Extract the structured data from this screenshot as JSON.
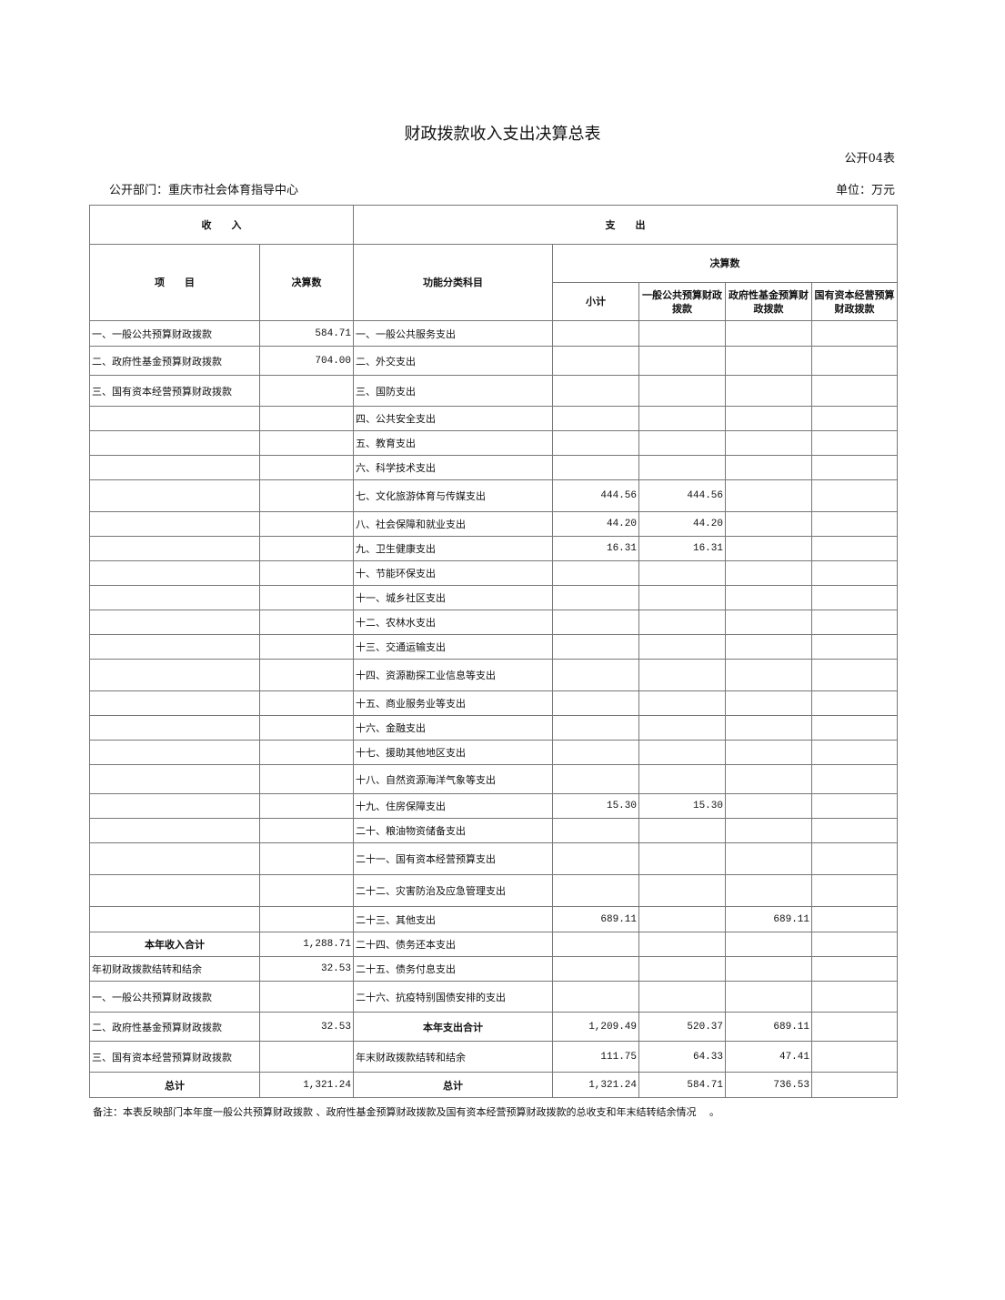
{
  "title": "财政拨款收入支出决算总表",
  "form_no": "公开04表",
  "department": "公开部门：重庆市社会体育指导中心",
  "unit": "单位：万元",
  "headers": {
    "income": "收　　入",
    "expense": "支　　出",
    "item": "项　　目",
    "amount": "决算数",
    "func": "功能分类科目",
    "final": "决算数",
    "subtotal": "小计",
    "general": "一般公共预算财政拨款",
    "gov_fund": "政府性基金预算财政拨款",
    "state_capital": "国有资本经营预算财政拨款"
  },
  "rows": [
    {
      "in_item": "一、一般公共预算财政拨款",
      "in_amt": "584.71",
      "func": "一、一般公共服务支出",
      "sub": "",
      "gen": "",
      "gov": "",
      "cap": ""
    },
    {
      "in_item": "二、政府性基金预算财政拨款",
      "in_amt": "704.00",
      "func": "二、外交支出",
      "sub": "",
      "gen": "",
      "gov": "",
      "cap": ""
    },
    {
      "in_item": "三、国有资本经营预算财政拨款",
      "in_amt": "",
      "func": "三、国防支出",
      "sub": "",
      "gen": "",
      "gov": "",
      "cap": ""
    },
    {
      "in_item": "",
      "in_amt": "",
      "func": "四、公共安全支出",
      "sub": "",
      "gen": "",
      "gov": "",
      "cap": ""
    },
    {
      "in_item": "",
      "in_amt": "",
      "func": "五、教育支出",
      "sub": "",
      "gen": "",
      "gov": "",
      "cap": ""
    },
    {
      "in_item": "",
      "in_amt": "",
      "func": "六、科学技术支出",
      "sub": "",
      "gen": "",
      "gov": "",
      "cap": ""
    },
    {
      "in_item": "",
      "in_amt": "",
      "func": "七、文化旅游体育与传媒支出",
      "sub": "444.56",
      "gen": "444.56",
      "gov": "",
      "cap": ""
    },
    {
      "in_item": "",
      "in_amt": "",
      "func": "八、社会保障和就业支出",
      "sub": "44.20",
      "gen": "44.20",
      "gov": "",
      "cap": ""
    },
    {
      "in_item": "",
      "in_amt": "",
      "func": "九、卫生健康支出",
      "sub": "16.31",
      "gen": "16.31",
      "gov": "",
      "cap": ""
    },
    {
      "in_item": "",
      "in_amt": "",
      "func": "十、节能环保支出",
      "sub": "",
      "gen": "",
      "gov": "",
      "cap": ""
    },
    {
      "in_item": "",
      "in_amt": "",
      "func": "十一、城乡社区支出",
      "sub": "",
      "gen": "",
      "gov": "",
      "cap": ""
    },
    {
      "in_item": "",
      "in_amt": "",
      "func": "十二、农林水支出",
      "sub": "",
      "gen": "",
      "gov": "",
      "cap": ""
    },
    {
      "in_item": "",
      "in_amt": "",
      "func": "十三、交通运输支出",
      "sub": "",
      "gen": "",
      "gov": "",
      "cap": ""
    },
    {
      "in_item": "",
      "in_amt": "",
      "func": "十四、资源勘探工业信息等支出",
      "sub": "",
      "gen": "",
      "gov": "",
      "cap": ""
    },
    {
      "in_item": "",
      "in_amt": "",
      "func": "十五、商业服务业等支出",
      "sub": "",
      "gen": "",
      "gov": "",
      "cap": ""
    },
    {
      "in_item": "",
      "in_amt": "",
      "func": "十六、金融支出",
      "sub": "",
      "gen": "",
      "gov": "",
      "cap": ""
    },
    {
      "in_item": "",
      "in_amt": "",
      "func": "十七、援助其他地区支出",
      "sub": "",
      "gen": "",
      "gov": "",
      "cap": ""
    },
    {
      "in_item": "",
      "in_amt": "",
      "func": "十八、自然资源海洋气象等支出",
      "sub": "",
      "gen": "",
      "gov": "",
      "cap": ""
    },
    {
      "in_item": "",
      "in_amt": "",
      "func": "十九、住房保障支出",
      "sub": "15.30",
      "gen": "15.30",
      "gov": "",
      "cap": ""
    },
    {
      "in_item": "",
      "in_amt": "",
      "func": "二十、粮油物资储备支出",
      "sub": "",
      "gen": "",
      "gov": "",
      "cap": ""
    },
    {
      "in_item": "",
      "in_amt": "",
      "func": "二十一、国有资本经营预算支出",
      "sub": "",
      "gen": "",
      "gov": "",
      "cap": ""
    },
    {
      "in_item": "",
      "in_amt": "",
      "func": "二十二、灾害防治及应急管理支出",
      "sub": "",
      "gen": "",
      "gov": "",
      "cap": ""
    },
    {
      "in_item": "",
      "in_amt": "",
      "func": "二十三、其他支出",
      "sub": "689.11",
      "gen": "",
      "gov": "689.11",
      "cap": ""
    },
    {
      "in_item": "本年收入合计",
      "in_amt": "1,288.71",
      "func": "二十四、债务还本支出",
      "sub": "",
      "gen": "",
      "gov": "",
      "cap": "",
      "in_bold": true
    },
    {
      "in_item": "年初财政拨款结转和结余",
      "in_amt": "32.53",
      "func": "二十五、债务付息支出",
      "sub": "",
      "gen": "",
      "gov": "",
      "cap": ""
    },
    {
      "in_item": "一、一般公共预算财政拨款",
      "in_amt": "",
      "func": "二十六、抗疫特别国债安排的支出",
      "sub": "",
      "gen": "",
      "gov": "",
      "cap": ""
    },
    {
      "in_item": "二、政府性基金预算财政拨款",
      "in_amt": "32.53",
      "func": "本年支出合计",
      "sub": "1,209.49",
      "gen": "520.37",
      "gov": "689.11",
      "cap": "",
      "func_bold": true
    },
    {
      "in_item": "三、国有资本经营预算财政拨款",
      "in_amt": "",
      "func": "年末财政拨款结转和结余",
      "sub": "111.75",
      "gen": "64.33",
      "gov": "47.41",
      "cap": ""
    },
    {
      "in_item": "总计",
      "in_amt": "1,321.24",
      "func": "总计",
      "sub": "1,321.24",
      "gen": "584.71",
      "gov": "736.53",
      "cap": "",
      "in_bold": true,
      "func_bold": true
    }
  ],
  "note": "备注：本表反映部门本年度一般公共预算财政拨款 、政府性基金预算财政拨款及国有资本经营预算财政拨款的总收支和年末结转结余情况　 。"
}
